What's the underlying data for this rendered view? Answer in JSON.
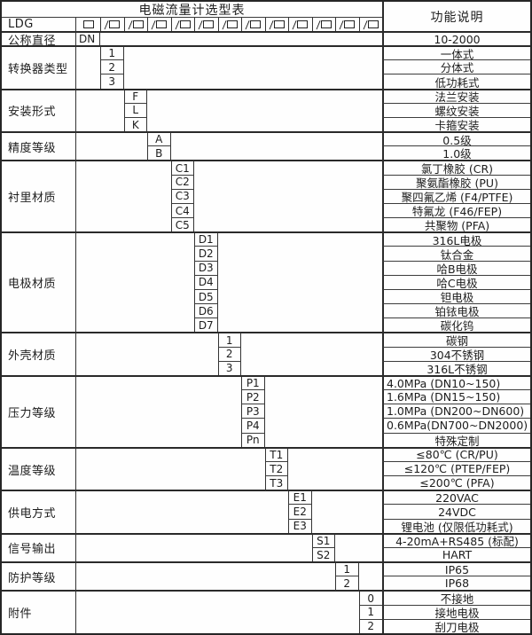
{
  "title": "电磁流量计选型表",
  "right_header": "功能说明",
  "model_row": {
    "label": "LDG",
    "slash_char": "/",
    "slot_count": 12
  },
  "icons": {
    "empty_code_box": "□"
  },
  "colors": {
    "grid_line": "#2a2a2a",
    "text": "#1d1d1d",
    "background": "#fefefe"
  },
  "categories": [
    {
      "label": "公称直径",
      "col": 1,
      "rows": [
        {
          "code": "DN",
          "code_align": "left",
          "desc": "10-2000"
        }
      ]
    },
    {
      "label": "转换器类型",
      "col": 2,
      "rows": [
        {
          "code": "1",
          "desc": "一体式"
        },
        {
          "code": "2",
          "desc": "分体式"
        },
        {
          "code": "3",
          "desc": "低功耗式"
        }
      ]
    },
    {
      "label": "安装形式",
      "col": 3,
      "rows": [
        {
          "code": "F",
          "desc": "法兰安装"
        },
        {
          "code": "L",
          "desc": "螺纹安装"
        },
        {
          "code": "K",
          "desc": "卡箍安装"
        }
      ]
    },
    {
      "label": "精度等级",
      "col": 4,
      "rows": [
        {
          "code": "A",
          "desc": "0.5级"
        },
        {
          "code": "B",
          "desc": "1.0级"
        }
      ]
    },
    {
      "label": "衬里材质",
      "col": 5,
      "rows": [
        {
          "code": "C1",
          "desc": "氯丁橡胶 (CR)"
        },
        {
          "code": "C2",
          "desc": "聚氨酯橡胶 (PU)"
        },
        {
          "code": "C3",
          "desc": "聚四氟乙烯 (F4/PTFE)"
        },
        {
          "code": "C4",
          "desc": "特氟龙 (F46/FEP)"
        },
        {
          "code": "C5",
          "desc": "共聚物 (PFA)"
        }
      ]
    },
    {
      "label": "电极材质",
      "col": 6,
      "rows": [
        {
          "code": "D1",
          "desc": "316L电极"
        },
        {
          "code": "D2",
          "desc": "钛合金"
        },
        {
          "code": "D3",
          "desc": "哈B电极"
        },
        {
          "code": "D4",
          "desc": "哈C电极"
        },
        {
          "code": "D5",
          "desc": "钽电极"
        },
        {
          "code": "D6",
          "desc": "铂铱电极"
        },
        {
          "code": "D7",
          "desc": "碳化钨"
        }
      ]
    },
    {
      "label": "外壳材质",
      "col": 7,
      "rows": [
        {
          "code": "1",
          "desc": "碳钢"
        },
        {
          "code": "2",
          "desc": "304不锈钢"
        },
        {
          "code": "3",
          "desc": "316L不锈钢"
        }
      ]
    },
    {
      "label": "压力等级",
      "col": 8,
      "rows": [
        {
          "code": "P1",
          "desc": "4.0MPa (DN10~150)",
          "align": "left"
        },
        {
          "code": "P2",
          "desc": "1.6MPa (DN15~150)",
          "align": "left"
        },
        {
          "code": "P3",
          "desc": "1.0MPa (DN200~DN600)",
          "align": "left"
        },
        {
          "code": "P4",
          "desc": "0.6MPa(DN700~DN2000)",
          "align": "left"
        },
        {
          "code": "Pn",
          "desc": "特殊定制"
        }
      ]
    },
    {
      "label": "温度等级",
      "col": 9,
      "rows": [
        {
          "code": "T1",
          "desc": "≤80℃ (CR/PU)"
        },
        {
          "code": "T2",
          "desc": "≤120℃ (PTEP/FEP)"
        },
        {
          "code": "T3",
          "desc": "≤200℃ (PFA)"
        }
      ]
    },
    {
      "label": "供电方式",
      "col": 10,
      "rows": [
        {
          "code": "E1",
          "desc": "220VAC"
        },
        {
          "code": "E2",
          "desc": "24VDC"
        },
        {
          "code": "E3",
          "desc": "锂电池 (仅限低功耗式)"
        }
      ]
    },
    {
      "label": "信号输出",
      "col": 11,
      "rows": [
        {
          "code": "S1",
          "desc": "4-20mA+RS485 (标配)"
        },
        {
          "code": "S2",
          "desc": "HART"
        }
      ]
    },
    {
      "label": "防护等级",
      "col": 12,
      "rows": [
        {
          "code": "1",
          "desc": "IP65"
        },
        {
          "code": "2",
          "desc": "IP68"
        }
      ]
    },
    {
      "label": "附件",
      "col": 13,
      "rows": [
        {
          "code": "0",
          "desc": "不接地"
        },
        {
          "code": "1",
          "desc": "接地电极"
        },
        {
          "code": "2",
          "desc": "刮刀电极"
        }
      ]
    }
  ]
}
